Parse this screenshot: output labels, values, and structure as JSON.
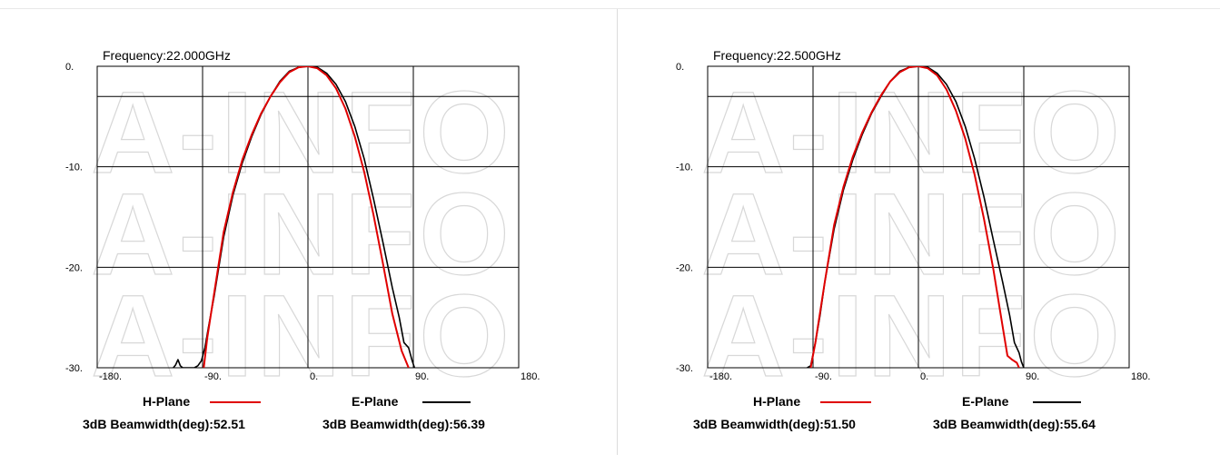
{
  "chart_data": [
    {
      "type": "line",
      "title": "Frequency:22.000GHz",
      "xlim": [
        -180,
        180
      ],
      "ylim": [
        -30,
        0
      ],
      "x_ticks": [
        "-180.",
        "-90.",
        "0.",
        "90.",
        "180."
      ],
      "y_ticks": [
        "0.",
        "-10.",
        "-20.",
        "-30."
      ],
      "grid": true,
      "watermark": "A-INFO",
      "series": [
        {
          "name": "H-Plane",
          "color": "#e00000",
          "beamwidth_label": "3dB Beamwidth(deg):52.51",
          "x": [
            -89,
            -86,
            -80,
            -72,
            -64,
            -56,
            -48,
            -40,
            -32,
            -24,
            -16,
            -8,
            0,
            8,
            16,
            24,
            32,
            40,
            48,
            56,
            64,
            72,
            80,
            86
          ],
          "y": [
            -30,
            -27,
            -22.5,
            -16.5,
            -12.5,
            -9.3,
            -6.8,
            -4.7,
            -3.0,
            -1.6,
            -0.6,
            -0.1,
            0,
            -0.2,
            -0.9,
            -2.2,
            -4.2,
            -7.0,
            -10.5,
            -14.8,
            -19.6,
            -24.6,
            -28.3,
            -30
          ]
        },
        {
          "name": "E-Plane",
          "color": "#000000",
          "beamwidth_label": "3dB Beamwidth(deg):56.39",
          "x": [
            -115,
            -113,
            -111,
            -109,
            -107,
            -97,
            -94,
            -91,
            -88,
            -85,
            -80,
            -72,
            -64,
            -56,
            -48,
            -40,
            -32,
            -24,
            -16,
            -8,
            0,
            8,
            16,
            24,
            32,
            40,
            48,
            56,
            64,
            72,
            78,
            82,
            86,
            89,
            91
          ],
          "y": [
            -30,
            -29.7,
            -29.2,
            -29.8,
            -30,
            -30,
            -29.8,
            -29.3,
            -28,
            -26,
            -22.8,
            -17,
            -12.8,
            -9.6,
            -7.0,
            -4.8,
            -3.0,
            -1.5,
            -0.5,
            -0.1,
            0,
            -0.1,
            -0.7,
            -1.8,
            -3.5,
            -6.0,
            -9.2,
            -13.2,
            -17.5,
            -22,
            -25,
            -27.5,
            -28,
            -29.3,
            -30
          ]
        }
      ]
    },
    {
      "type": "line",
      "title": "Frequency:22.500GHz",
      "xlim": [
        -180,
        180
      ],
      "ylim": [
        -30,
        0
      ],
      "x_ticks": [
        "-180.",
        "-90.",
        "0.",
        "90.",
        "180."
      ],
      "y_ticks": [
        "0.",
        "-10.",
        "-20.",
        "-30."
      ],
      "grid": true,
      "watermark": "A-INFO",
      "series": [
        {
          "name": "H-Plane",
          "color": "#e00000",
          "beamwidth_label": "3dB Beamwidth(deg):51.50",
          "x": [
            -92,
            -88,
            -80,
            -72,
            -64,
            -56,
            -48,
            -40,
            -32,
            -24,
            -16,
            -8,
            0,
            8,
            16,
            24,
            32,
            40,
            48,
            56,
            64,
            70,
            76,
            80,
            84,
            86
          ],
          "y": [
            -30,
            -27.5,
            -21.5,
            -15.8,
            -12.0,
            -9.0,
            -6.6,
            -4.6,
            -2.9,
            -1.5,
            -0.6,
            -0.1,
            0,
            -0.2,
            -0.9,
            -2.3,
            -4.4,
            -7.2,
            -10.8,
            -15.2,
            -20.2,
            -24.5,
            -28.8,
            -29.2,
            -29.5,
            -30
          ]
        },
        {
          "name": "E-Plane",
          "color": "#000000",
          "beamwidth_label": "3dB Beamwidth(deg):55.64",
          "x": [
            -95,
            -92,
            -88,
            -84,
            -80,
            -72,
            -64,
            -56,
            -48,
            -40,
            -32,
            -24,
            -16,
            -8,
            0,
            8,
            16,
            24,
            32,
            40,
            48,
            56,
            64,
            72,
            78,
            82,
            86,
            88,
            90
          ],
          "y": [
            -30,
            -29.8,
            -27.5,
            -24.8,
            -21.5,
            -16.2,
            -12.3,
            -9.3,
            -6.8,
            -4.7,
            -3.0,
            -1.5,
            -0.5,
            -0.1,
            0,
            -0.1,
            -0.7,
            -1.8,
            -3.5,
            -6.0,
            -9.2,
            -13.0,
            -17.3,
            -21.5,
            -24.8,
            -27.5,
            -28.5,
            -29.4,
            -30
          ]
        }
      ]
    }
  ]
}
